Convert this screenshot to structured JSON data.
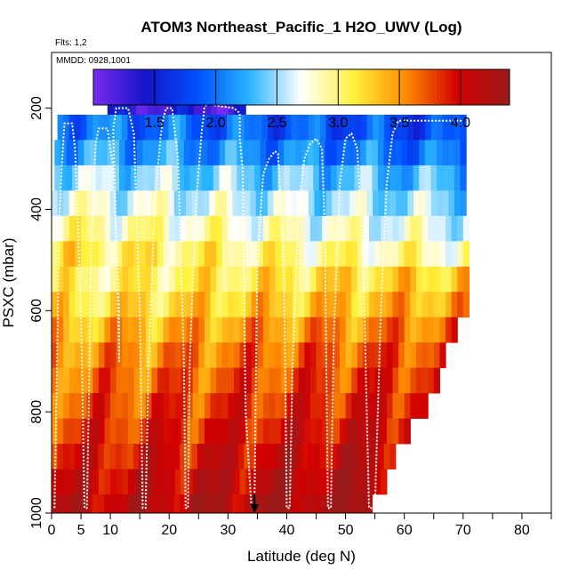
{
  "chart_data": {
    "type": "heatmap",
    "title": "ATOM3 Northeast_Pacific_1 H2O_UWV (Log)",
    "flights_note": "Flts: 1,2",
    "date_note": "MMDD: 0928,1001",
    "xlabel": "Latitude (deg N)",
    "ylabel": "PSXC (mbar)",
    "xlim": [
      0,
      85
    ],
    "ylim": [
      1000,
      90
    ],
    "y_reversed": true,
    "x_ticks": [
      0,
      5,
      10,
      20,
      30,
      40,
      50,
      60,
      70,
      80
    ],
    "x_minor_ticks": [
      15,
      25,
      35,
      45,
      55,
      65,
      75,
      85
    ],
    "y_ticks": [
      200,
      400,
      600,
      800,
      1000
    ],
    "colorbar": {
      "range": [
        1.0,
        4.4
      ],
      "ticks": [
        1.5,
        2.0,
        2.5,
        3.0,
        3.5,
        4.0
      ],
      "tick_labels": [
        "1.5",
        "2.0",
        "2.5",
        "3.0",
        "3.5",
        "4.0"
      ],
      "colors": [
        "#7a2cf0",
        "#1414c8",
        "#0050ff",
        "#28b4ff",
        "#ffffff",
        "#fff23c",
        "#ff8c00",
        "#d20000",
        "#9b1b1b"
      ]
    },
    "arrow_marker_lat": 34.5,
    "level_bands": [
      {
        "p_top": 163,
        "p_bot": 213,
        "lat_min": 9.5,
        "lat_max": 33,
        "value": 1.25
      },
      {
        "p_top": 213,
        "p_bot": 263,
        "lat_min": 1,
        "lat_max": 70.5,
        "value": 1.9
      },
      {
        "p_top": 263,
        "p_bot": 313,
        "lat_min": 0.5,
        "lat_max": 70.5,
        "value": 2.1
      },
      {
        "p_top": 313,
        "p_bot": 363,
        "lat_min": 0.5,
        "lat_max": 70.5,
        "value": 2.4
      },
      {
        "p_top": 363,
        "p_bot": 413,
        "lat_min": 0,
        "lat_max": 70.5,
        "value": 2.6
      },
      {
        "p_top": 413,
        "p_bot": 463,
        "lat_min": 0,
        "lat_max": 71,
        "value": 2.8
      },
      {
        "p_top": 463,
        "p_bot": 513,
        "lat_min": 0,
        "lat_max": 71,
        "value": 3.0
      },
      {
        "p_top": 513,
        "p_bot": 563,
        "lat_min": 0,
        "lat_max": 71,
        "value": 3.15
      },
      {
        "p_top": 563,
        "p_bot": 613,
        "lat_min": 0,
        "lat_max": 71,
        "value": 3.3
      },
      {
        "p_top": 613,
        "p_bot": 663,
        "lat_min": 0,
        "lat_max": 69,
        "value": 3.5
      },
      {
        "p_top": 663,
        "p_bot": 713,
        "lat_min": 0,
        "lat_max": 67,
        "value": 3.65
      },
      {
        "p_top": 713,
        "p_bot": 763,
        "lat_min": 0,
        "lat_max": 66,
        "value": 3.75
      },
      {
        "p_top": 763,
        "p_bot": 813,
        "lat_min": 0,
        "lat_max": 64,
        "value": 3.85
      },
      {
        "p_top": 813,
        "p_bot": 863,
        "lat_min": 0,
        "lat_max": 61,
        "value": 3.95
      },
      {
        "p_top": 863,
        "p_bot": 913,
        "lat_min": 0,
        "lat_max": 58.5,
        "value": 4.05
      },
      {
        "p_top": 913,
        "p_bot": 963,
        "lat_min": 0,
        "lat_max": 57,
        "value": 4.15
      },
      {
        "p_top": 963,
        "p_bot": 1000,
        "lat_min": 0,
        "lat_max": 54.5,
        "value": 4.25
      }
    ],
    "flight_track": [
      [
        0.5,
        990
      ],
      [
        1,
        650
      ],
      [
        1.3,
        420
      ],
      [
        1.8,
        300
      ],
      [
        2.2,
        230
      ],
      [
        3.5,
        230
      ],
      [
        4,
        280
      ],
      [
        5,
        600
      ],
      [
        5.6,
        990
      ],
      [
        6,
        990
      ],
      [
        6.3,
        800
      ],
      [
        6.8,
        450
      ],
      [
        7.5,
        270
      ],
      [
        8,
        240
      ],
      [
        9.5,
        240
      ],
      [
        10.5,
        320
      ],
      [
        11.5,
        600
      ],
      [
        11.5,
        700
      ],
      [
        10.5,
        240
      ],
      [
        11,
        200
      ],
      [
        13,
        200
      ],
      [
        14,
        250
      ],
      [
        15,
        600
      ],
      [
        15.5,
        990
      ],
      [
        16,
        990
      ],
      [
        16.5,
        700
      ],
      [
        17.5,
        400
      ],
      [
        18.5,
        260
      ],
      [
        19,
        220
      ],
      [
        19.5,
        200
      ],
      [
        20.5,
        200
      ],
      [
        21.5,
        300
      ],
      [
        22.5,
        700
      ],
      [
        22.8,
        990
      ],
      [
        23.2,
        990
      ],
      [
        23.5,
        700
      ],
      [
        24.5,
        400
      ],
      [
        25.5,
        250
      ],
      [
        26,
        200
      ],
      [
        26.5,
        190
      ],
      [
        28,
        195
      ],
      [
        31,
        200
      ],
      [
        32,
        210
      ],
      [
        32,
        260
      ],
      [
        32.5,
        320
      ],
      [
        33,
        800
      ],
      [
        34,
        990
      ],
      [
        34.5,
        990
      ],
      [
        35,
        500
      ],
      [
        36,
        330
      ],
      [
        37,
        300
      ],
      [
        38,
        285
      ],
      [
        38.5,
        290
      ],
      [
        39.5,
        500
      ],
      [
        40,
        990
      ],
      [
        40.5,
        990
      ],
      [
        41,
        700
      ],
      [
        42,
        400
      ],
      [
        43,
        300
      ],
      [
        44,
        270
      ],
      [
        45,
        260
      ],
      [
        46,
        280
      ],
      [
        46.5,
        450
      ],
      [
        47,
        990
      ],
      [
        47.5,
        990
      ],
      [
        48,
        650
      ],
      [
        49,
        350
      ],
      [
        50,
        260
      ],
      [
        51,
        250
      ],
      [
        52,
        280
      ],
      [
        53,
        500
      ],
      [
        54,
        990
      ],
      [
        55,
        990
      ],
      [
        56,
        600
      ],
      [
        57,
        350
      ],
      [
        58,
        250
      ],
      [
        59,
        225
      ],
      [
        70,
        225
      ]
    ]
  }
}
